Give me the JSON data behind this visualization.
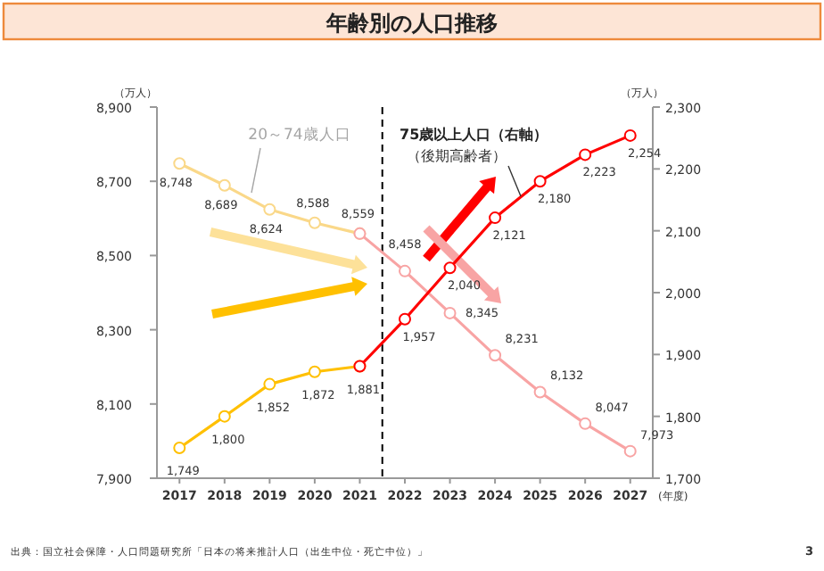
{
  "chart_data": {
    "type": "line",
    "title": "年齢別の人口推移",
    "ylabel": "（万人）",
    "y2label": "（万人）",
    "xlabel": "(年度)",
    "xlim": [
      2016.5,
      2027.5
    ],
    "xticks": [
      2017,
      2018,
      2019,
      2020,
      2021,
      2022,
      2023,
      2024,
      2025,
      2026,
      2027
    ],
    "ylim": [
      7900,
      8900
    ],
    "yticks": [
      {
        "value": 7900,
        "label": "7,900"
      },
      {
        "value": 8100,
        "label": "8,100"
      },
      {
        "value": 8300,
        "label": "8,300"
      },
      {
        "value": 8500,
        "label": "8,500"
      },
      {
        "value": 8700,
        "label": "8,700"
      },
      {
        "value": 8900,
        "label": "8,900"
      }
    ],
    "y2lim": [
      1700,
      2300
    ],
    "y2ticks": [
      {
        "value": 1700,
        "label": "1,700"
      },
      {
        "value": 1800,
        "label": "1,800"
      },
      {
        "value": 1900,
        "label": "1,900"
      },
      {
        "value": 2000,
        "label": "2,000"
      },
      {
        "value": 2100,
        "label": "2,100"
      },
      {
        "value": 2200,
        "label": "2,200"
      },
      {
        "value": 2300,
        "label": "2,300"
      }
    ],
    "marker": "circle",
    "grid": false,
    "series": [
      {
        "name": "20～74歳人口",
        "color": "#fad889",
        "x": [
          2017,
          2018,
          2019,
          2020,
          2021
        ],
        "values": [
          8748,
          8689,
          8624,
          8588,
          8559
        ],
        "value_labels": [
          "8,748",
          "8,689",
          "8,624",
          "8,588",
          "8,559"
        ]
      },
      {
        "color": "#f8a4a4",
        "x": [
          2021,
          2022,
          2023,
          2024,
          2025,
          2026,
          2027
        ],
        "values": [
          8559,
          8458,
          8345,
          8231,
          8132,
          8047,
          7973
        ],
        "value_labels": [
          null,
          "8,458",
          "8,345",
          "8,231",
          "8,132",
          "8,047",
          "7,973"
        ]
      },
      {
        "color": "#ffc000",
        "axis": "y2",
        "x": [
          2017,
          2018,
          2019,
          2020,
          2021
        ],
        "values": [
          1749,
          1800,
          1852,
          1872,
          1881
        ],
        "value_labels": [
          "1,749",
          "1,800",
          "1,852",
          "1,872",
          "1,881"
        ]
      },
      {
        "name": "75歳以上人口（右軸）",
        "color": "#ff0000",
        "axis": "y2",
        "x": [
          2021,
          2022,
          2023,
          2024,
          2025,
          2026,
          2027
        ],
        "values": [
          1881,
          1957,
          2040,
          2121,
          2180,
          2223,
          2254
        ],
        "value_labels": [
          null,
          "1,957",
          "2,040",
          "2,121",
          "2,180",
          "2,223",
          "2,254"
        ]
      }
    ],
    "ref_lines": [
      {
        "axis": "x",
        "value": 2021.5,
        "color": "#000000",
        "line_style": "dashed"
      }
    ],
    "annotations": [
      "（後期高齢者）",
      "出典：国立社会保障・人口問題研究所「日本の将来推計人口（出生中位・死亡中位）」",
      "3"
    ]
  }
}
